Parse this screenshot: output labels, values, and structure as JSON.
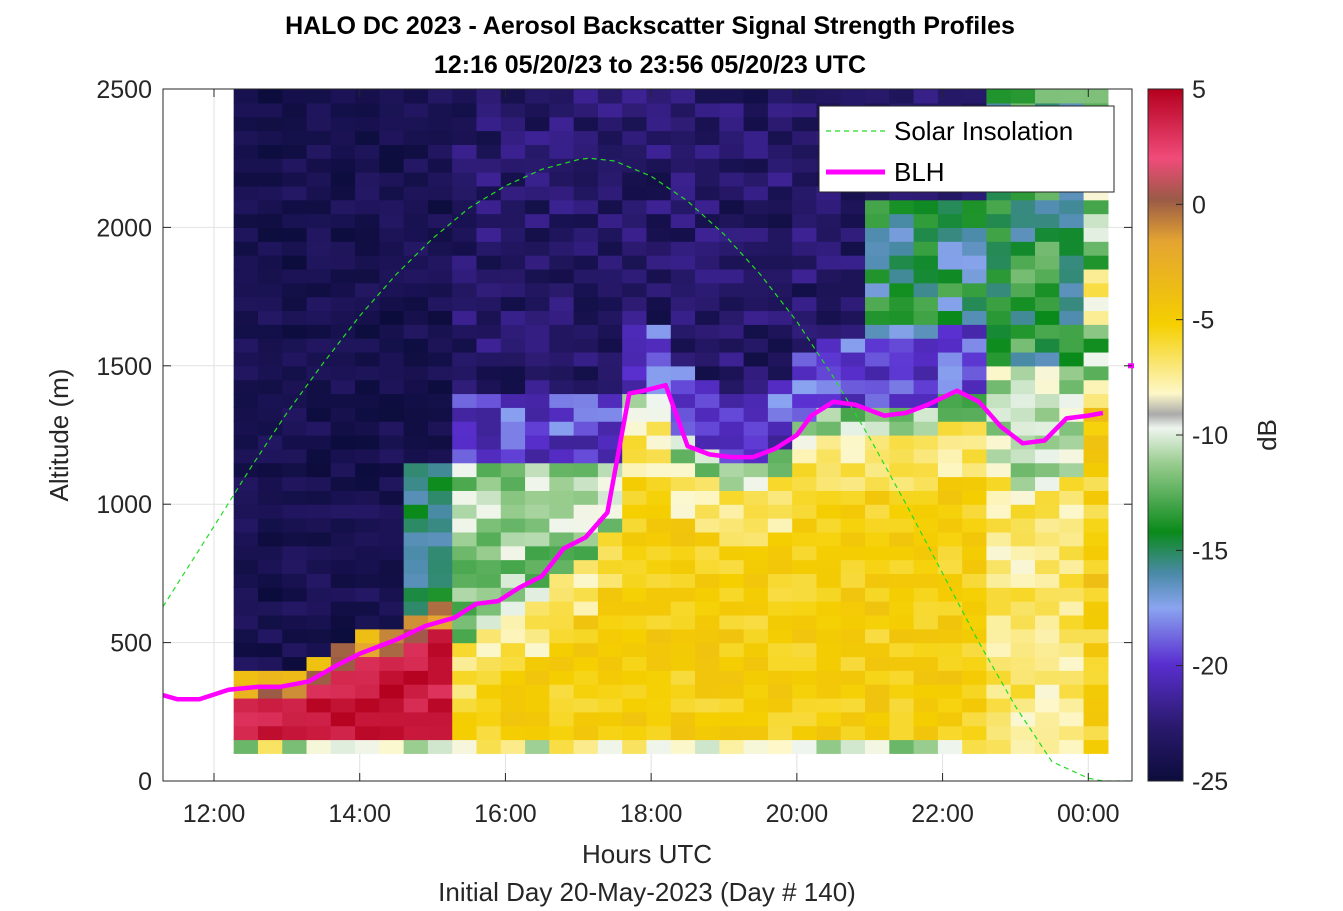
{
  "chart_data": {
    "type": "heatmap",
    "title": "HALO DC 2023 - Aerosol Backscatter Signal Strength Profiles",
    "subtitle": "12:16 05/20/23 to 23:56 05/20/23  UTC",
    "xlabel": "Hours UTC",
    "ylabel": "Altitude (m)",
    "footer": "Initial Day 20-May-2023 (Day # 140)",
    "xlim": [
      11.3,
      24.6
    ],
    "ylim": [
      0,
      2500
    ],
    "x_ticks": [
      12,
      14,
      16,
      18,
      20,
      22,
      24
    ],
    "x_tick_labels": [
      "12:00",
      "14:00",
      "16:00",
      "18:00",
      "20:00",
      "22:00",
      "00:00"
    ],
    "y_ticks": [
      0,
      500,
      1000,
      1500,
      2000,
      2500
    ],
    "y_tick_labels": [
      "0",
      "500",
      "1000",
      "1500",
      "2000",
      "2500"
    ],
    "grid": true,
    "legend_placement": "top-right",
    "colorbar": {
      "label": "dB",
      "range": [
        -25,
        5
      ],
      "ticks": [
        5,
        0,
        -5,
        -10,
        -15,
        -20,
        -25
      ],
      "tick_labels": [
        "5",
        "0",
        "-5",
        "-10",
        "-15",
        "-20",
        "-25"
      ]
    },
    "heatmap": {
      "x_start": 12.27,
      "x_end": 24.27,
      "time_step_h": 0.3333,
      "alt_top_m": 2500,
      "alt_bottom_m": 100,
      "alt_step_m": 50
    },
    "series": [
      {
        "name": "Solar Insolation",
        "style": "dashed",
        "color": "#22dd22",
        "x": [
          11.3,
          12.0,
          12.5,
          13.0,
          13.5,
          14.0,
          14.5,
          15.0,
          15.5,
          16.0,
          16.5,
          17.0,
          17.15,
          17.5,
          18.0,
          18.5,
          19.0,
          19.5,
          20.0,
          20.5,
          21.0,
          21.5,
          22.0,
          22.5,
          23.0,
          23.5,
          24.0,
          24.2,
          24.6
        ],
        "y": [
          630,
          920,
          1130,
          1330,
          1510,
          1680,
          1830,
          1960,
          2070,
          2150,
          2210,
          2245,
          2250,
          2240,
          2185,
          2095,
          1975,
          1830,
          1660,
          1460,
          1240,
          1000,
          750,
          500,
          270,
          70,
          10,
          0,
          0
        ]
      },
      {
        "name": "BLH",
        "style": "solid",
        "color": "#ff00ff",
        "x": [
          11.3,
          11.5,
          11.8,
          12.2,
          12.6,
          12.9,
          13.3,
          13.7,
          14.0,
          14.5,
          14.9,
          15.3,
          15.6,
          15.9,
          16.2,
          16.5,
          16.8,
          17.1,
          17.4,
          17.7,
          17.9,
          18.2,
          18.5,
          18.8,
          19.1,
          19.4,
          19.7,
          20.0,
          20.2,
          20.5,
          20.8,
          21.2,
          21.5,
          21.8,
          22.2,
          22.5,
          22.8,
          23.1,
          23.4,
          23.7,
          24.0,
          24.2
        ],
        "y": [
          310,
          295,
          295,
          330,
          340,
          340,
          360,
          420,
          460,
          510,
          560,
          590,
          640,
          650,
          700,
          740,
          840,
          880,
          970,
          1400,
          1410,
          1430,
          1210,
          1180,
          1170,
          1170,
          1200,
          1250,
          1320,
          1370,
          1360,
          1320,
          1330,
          1360,
          1410,
          1370,
          1280,
          1220,
          1230,
          1310,
          1320,
          1330
        ]
      }
    ],
    "blh_offaxis_marker": {
      "x": 24.6,
      "y": 1500
    }
  }
}
